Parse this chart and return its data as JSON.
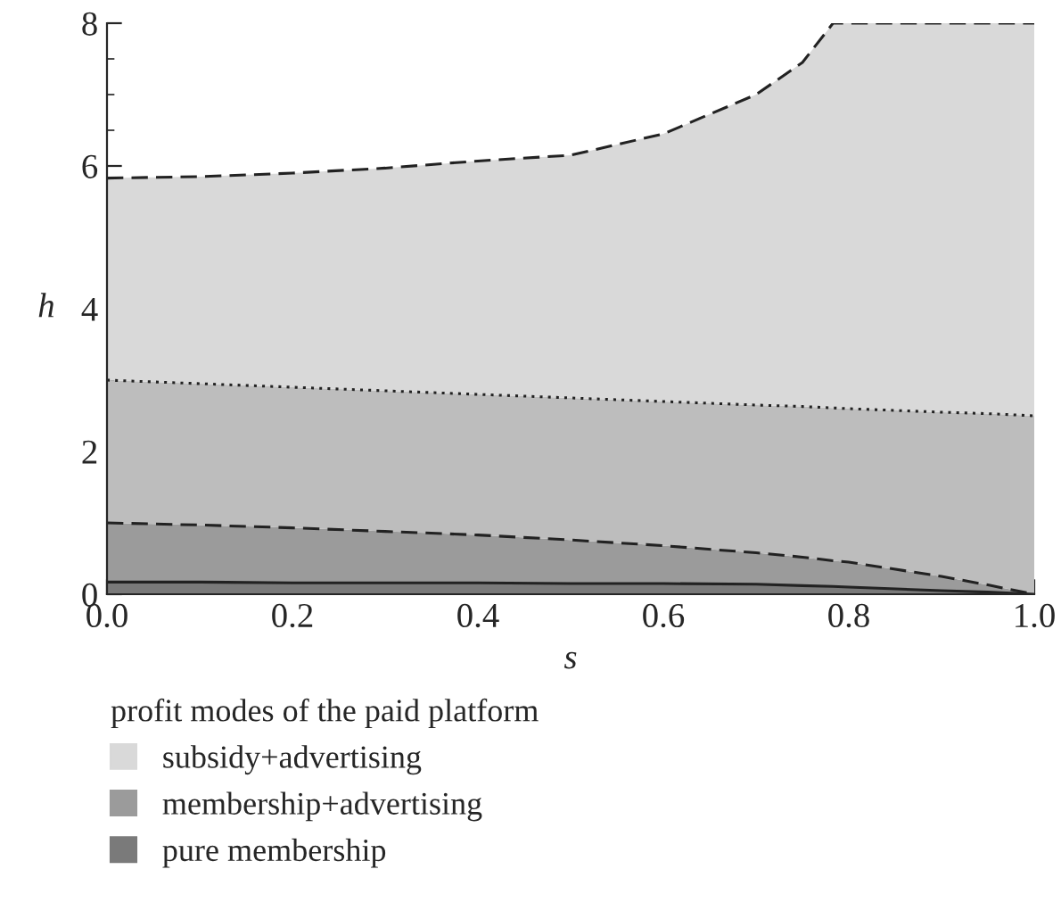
{
  "chart_data": {
    "type": "area",
    "xlabel": "s",
    "ylabel": "h",
    "legend_title": "profit modes of the paid platform",
    "legend": "bottom",
    "xlim": [
      0,
      1
    ],
    "ylim": [
      0,
      8
    ],
    "xticks": [
      {
        "value": 0,
        "label": "0.0"
      },
      {
        "value": 0.05,
        "label": null
      },
      {
        "value": 0.1,
        "label": null
      },
      {
        "value": 0.15,
        "label": null
      },
      {
        "value": 0.2,
        "label": "0.2"
      },
      {
        "value": 0.25,
        "label": null
      },
      {
        "value": 0.3,
        "label": null
      },
      {
        "value": 0.35,
        "label": null
      },
      {
        "value": 0.4,
        "label": "0.4"
      },
      {
        "value": 0.45,
        "label": null
      },
      {
        "value": 0.5,
        "label": null
      },
      {
        "value": 0.55,
        "label": null
      },
      {
        "value": 0.6,
        "label": "0.6"
      },
      {
        "value": 0.65,
        "label": null
      },
      {
        "value": 0.7,
        "label": null
      },
      {
        "value": 0.75,
        "label": null
      },
      {
        "value": 0.8,
        "label": "0.8"
      },
      {
        "value": 0.85,
        "label": null
      },
      {
        "value": 0.9,
        "label": null
      },
      {
        "value": 0.95,
        "label": null
      },
      {
        "value": 1,
        "label": "1.0"
      }
    ],
    "yticks": [
      0,
      {
        "value": 0.5,
        "label": null
      },
      {
        "value": 1,
        "label": null
      },
      {
        "value": 1.5,
        "label": null
      },
      2,
      {
        "value": 2.5,
        "label": null
      },
      {
        "value": 3,
        "label": null
      },
      {
        "value": 3.5,
        "label": null
      },
      4,
      {
        "value": 4.5,
        "label": null
      },
      {
        "value": 5,
        "label": null
      },
      {
        "value": 5.5,
        "label": null
      },
      6,
      {
        "value": 6.5,
        "label": null
      },
      {
        "value": 7,
        "label": null
      },
      {
        "value": 7.5,
        "label": null
      },
      8
    ],
    "stacked": true,
    "x": [
      0,
      0.1,
      0.2,
      0.3,
      0.4,
      0.5,
      0.6,
      0.7,
      0.75,
      0.783,
      0.8,
      0.9,
      0.95,
      1
    ],
    "series": [
      {
        "name": "pure membership",
        "color": "#7a7a7a",
        "line_style": "solid",
        "values": [
          0.17,
          0.17,
          0.16,
          0.16,
          0.16,
          0.15,
          0.15,
          0.14,
          0.12,
          0.11,
          0.1,
          0.05,
          0.03,
          0
        ]
      },
      {
        "name": "membership+advertising",
        "color": "#9b9b9b",
        "line_style": "dashed",
        "values": [
          0.83,
          0.8,
          0.77,
          0.72,
          0.67,
          0.61,
          0.53,
          0.44,
          0.4,
          0.36,
          0.35,
          0.2,
          0.1,
          0
        ]
      },
      {
        "color": "#bdbdbd",
        "line_style": "dotted",
        "values": [
          2.0,
          1.98,
          1.97,
          1.97,
          1.97,
          1.99,
          2.02,
          2.07,
          2.11,
          2.14,
          2.15,
          2.3,
          2.4,
          2.5
        ]
      },
      {
        "name": "subsidy+advertising",
        "color": "#d9d9d9",
        "line_style": "dashed",
        "values": [
          2.83,
          2.9,
          3.0,
          3.12,
          3.27,
          3.4,
          3.75,
          4.35,
          4.82,
          5.39,
          5.4,
          5.45,
          5.47,
          5.5
        ]
      }
    ]
  }
}
